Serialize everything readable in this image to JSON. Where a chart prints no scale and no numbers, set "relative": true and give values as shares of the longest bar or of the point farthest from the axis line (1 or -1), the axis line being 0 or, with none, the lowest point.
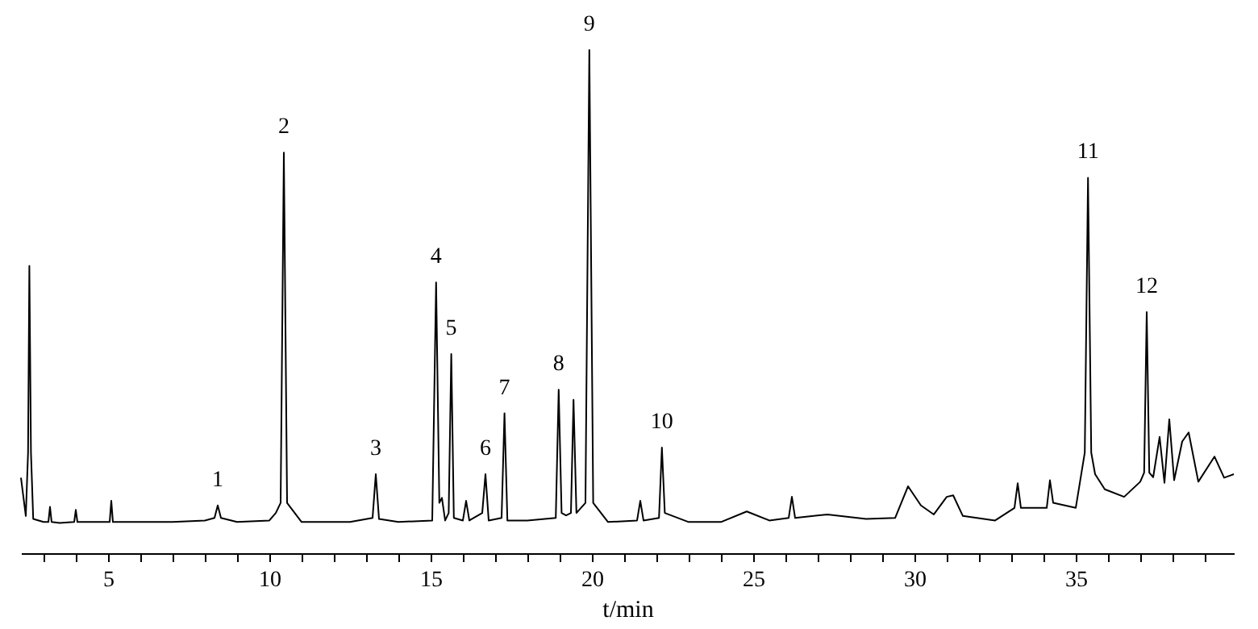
{
  "chart_data": {
    "type": "line",
    "relative": true,
    "xlabel": "t/min",
    "xlim": [
      2.3,
      39.9
    ],
    "xticks": [
      {
        "value": 3,
        "label": null
      },
      {
        "value": 4,
        "label": null
      },
      5,
      {
        "value": 6,
        "label": null
      },
      {
        "value": 7,
        "label": null
      },
      {
        "value": 8,
        "label": null
      },
      {
        "value": 9,
        "label": null
      },
      10,
      {
        "value": 11,
        "label": null
      },
      {
        "value": 12,
        "label": null
      },
      {
        "value": 13,
        "label": null
      },
      {
        "value": 14,
        "label": null
      },
      15,
      {
        "value": 16,
        "label": null
      },
      {
        "value": 17,
        "label": null
      },
      {
        "value": 18,
        "label": null
      },
      {
        "value": 19,
        "label": null
      },
      20,
      {
        "value": 21,
        "label": null
      },
      {
        "value": 22,
        "label": null
      },
      {
        "value": 23,
        "label": null
      },
      {
        "value": 24,
        "label": null
      },
      25,
      {
        "value": 26,
        "label": null
      },
      {
        "value": 27,
        "label": null
      },
      {
        "value": 28,
        "label": null
      },
      {
        "value": 29,
        "label": null
      },
      30,
      {
        "value": 31,
        "label": null
      },
      {
        "value": 32,
        "label": null
      },
      {
        "value": 33,
        "label": null
      },
      {
        "value": 34,
        "label": null
      },
      35,
      {
        "value": 36,
        "label": null
      },
      {
        "value": 37,
        "label": null
      },
      {
        "value": 38,
        "label": null
      },
      {
        "value": 39,
        "label": null
      }
    ],
    "grid": false,
    "line_style": "solid",
    "marker": "none",
    "series": [
      {
        "color": "#000000",
        "x": [
          2.3,
          2.45,
          2.52,
          2.56,
          2.61,
          2.68,
          3.0,
          3.15,
          3.2,
          3.25,
          3.5,
          3.95,
          4.0,
          4.05,
          4.5,
          5.05,
          5.1,
          5.15,
          6.0,
          7.0,
          8.0,
          8.3,
          8.4,
          8.5,
          9.0,
          10.0,
          10.2,
          10.35,
          10.45,
          10.55,
          11.0,
          11.5,
          12.5,
          13.2,
          13.3,
          13.4,
          14.0,
          15.05,
          15.17,
          15.27,
          15.35,
          15.45,
          15.56,
          15.64,
          15.72,
          16.0,
          16.1,
          16.2,
          16.6,
          16.7,
          16.8,
          17.2,
          17.29,
          17.38,
          18.0,
          18.88,
          18.97,
          19.06,
          19.2,
          19.35,
          19.43,
          19.52,
          19.8,
          19.92,
          20.04,
          20.5,
          21.4,
          21.5,
          21.6,
          22.08,
          22.17,
          22.26,
          23.0,
          24.0,
          24.8,
          25.5,
          26.1,
          26.2,
          26.3,
          27.3,
          28.5,
          29.4,
          29.8,
          30.2,
          30.6,
          31.0,
          31.2,
          31.5,
          32.5,
          33.1,
          33.2,
          33.3,
          34.1,
          34.2,
          34.3,
          35.0,
          35.28,
          35.38,
          35.48,
          35.6,
          35.9,
          36.5,
          37.0,
          37.12,
          37.2,
          37.28,
          37.4,
          37.6,
          37.75,
          37.9,
          38.05,
          38.3,
          38.5,
          38.8,
          39.3,
          39.6,
          39.9
        ],
        "values": [
          0.15,
          0.074,
          0.2,
          0.571,
          0.2,
          0.068,
          0.062,
          0.062,
          0.092,
          0.062,
          0.06,
          0.062,
          0.086,
          0.062,
          0.062,
          0.062,
          0.104,
          0.062,
          0.062,
          0.062,
          0.065,
          0.07,
          0.095,
          0.07,
          0.062,
          0.065,
          0.08,
          0.1,
          0.796,
          0.1,
          0.062,
          0.062,
          0.062,
          0.07,
          0.157,
          0.068,
          0.062,
          0.065,
          0.538,
          0.1,
          0.11,
          0.065,
          0.08,
          0.396,
          0.07,
          0.065,
          0.104,
          0.065,
          0.08,
          0.157,
          0.065,
          0.07,
          0.278,
          0.065,
          0.065,
          0.07,
          0.325,
          0.08,
          0.075,
          0.08,
          0.305,
          0.08,
          0.1,
          1.0,
          0.1,
          0.062,
          0.065,
          0.104,
          0.065,
          0.07,
          0.21,
          0.08,
          0.062,
          0.062,
          0.083,
          0.065,
          0.07,
          0.112,
          0.07,
          0.077,
          0.068,
          0.07,
          0.133,
          0.095,
          0.077,
          0.112,
          0.115,
          0.074,
          0.065,
          0.09,
          0.139,
          0.09,
          0.09,
          0.145,
          0.1,
          0.09,
          0.2,
          0.746,
          0.2,
          0.157,
          0.127,
          0.112,
          0.142,
          0.16,
          0.479,
          0.16,
          0.151,
          0.231,
          0.14,
          0.266,
          0.145,
          0.222,
          0.24,
          0.142,
          0.192,
          0.15,
          0.157
        ]
      }
    ],
    "annotations": [
      {
        "text": "1",
        "x": 8.4,
        "y": 0.095
      },
      {
        "text": "2",
        "x": 10.45,
        "y": 0.796
      },
      {
        "text": "3",
        "x": 13.3,
        "y": 0.157
      },
      {
        "text": "4",
        "x": 15.17,
        "y": 0.538
      },
      {
        "text": "5",
        "x": 15.64,
        "y": 0.396
      },
      {
        "text": "6",
        "x": 16.7,
        "y": 0.157
      },
      {
        "text": "7",
        "x": 17.29,
        "y": 0.278
      },
      {
        "text": "8",
        "x": 18.97,
        "y": 0.325
      },
      {
        "text": "9",
        "x": 19.92,
        "y": 1.0
      },
      {
        "text": "10",
        "x": 22.17,
        "y": 0.21
      },
      {
        "text": "11",
        "x": 35.38,
        "y": 0.746
      },
      {
        "text": "12",
        "x": 37.2,
        "y": 0.479
      }
    ]
  }
}
